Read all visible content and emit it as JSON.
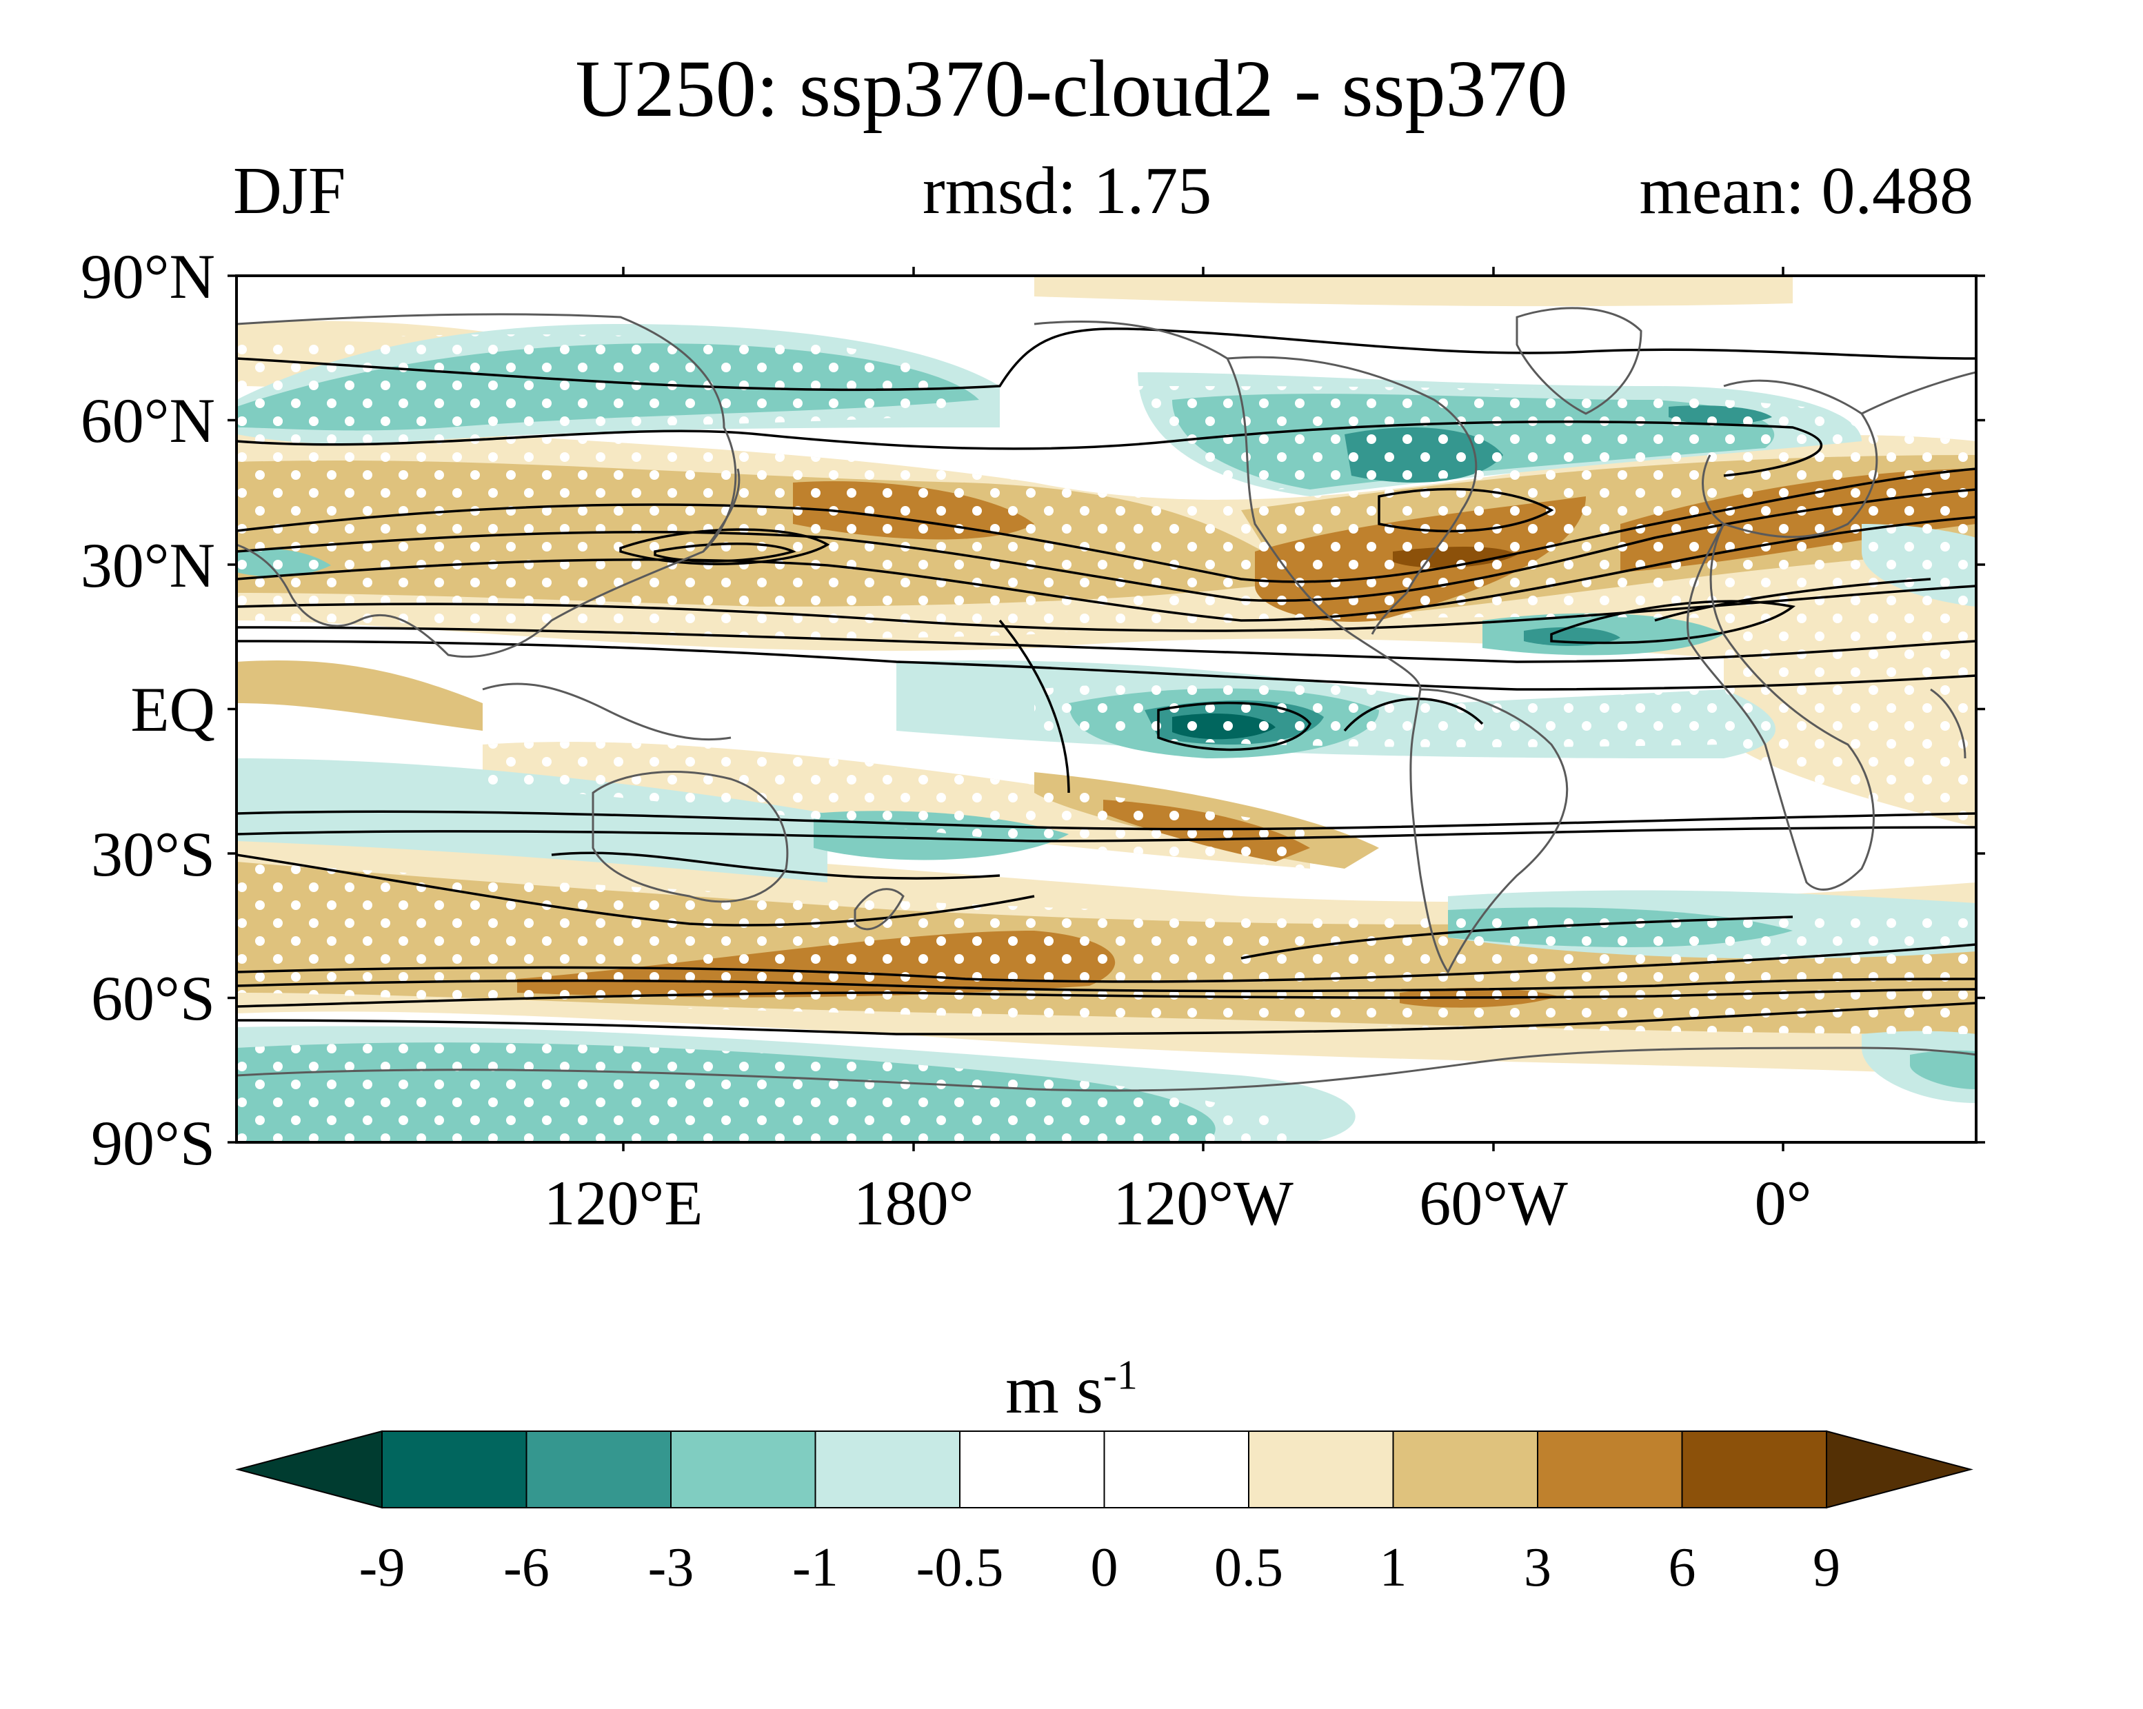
{
  "title": "U250: ssp370-cloud2 - ssp370",
  "season": "DJF",
  "rmsd_text": "rmsd: 1.75",
  "mean_text": "mean: 0.488",
  "lat_labels": [
    "90°N",
    "60°N",
    "30°N",
    "EQ",
    "30°S",
    "60°S",
    "90°S"
  ],
  "lon_labels": [
    "120°E",
    "180°",
    "120°W",
    "60°W",
    "0°"
  ],
  "colorbar": {
    "units_base": "m s",
    "units_exp": "-1",
    "levels": [
      "-9",
      "-6",
      "-3",
      "-1",
      "-0.5",
      "0",
      "0.5",
      "1",
      "3",
      "6",
      "9"
    ],
    "colors": [
      "#003c30",
      "#01665e",
      "#35978f",
      "#80cdc1",
      "#c7eae5",
      "#ffffff",
      "#ffffff",
      "#f6e8c3",
      "#dfc27d",
      "#bf812d",
      "#8c510a",
      "#543005"
    ]
  },
  "map": {
    "projection": "cylindrical equidistant",
    "lon_range": [
      40,
      400
    ],
    "lat_range": [
      -90,
      90
    ],
    "stippling": "white dots mark significant differences",
    "contours": "black lines show ssp370 DJF U250 climatology"
  }
}
